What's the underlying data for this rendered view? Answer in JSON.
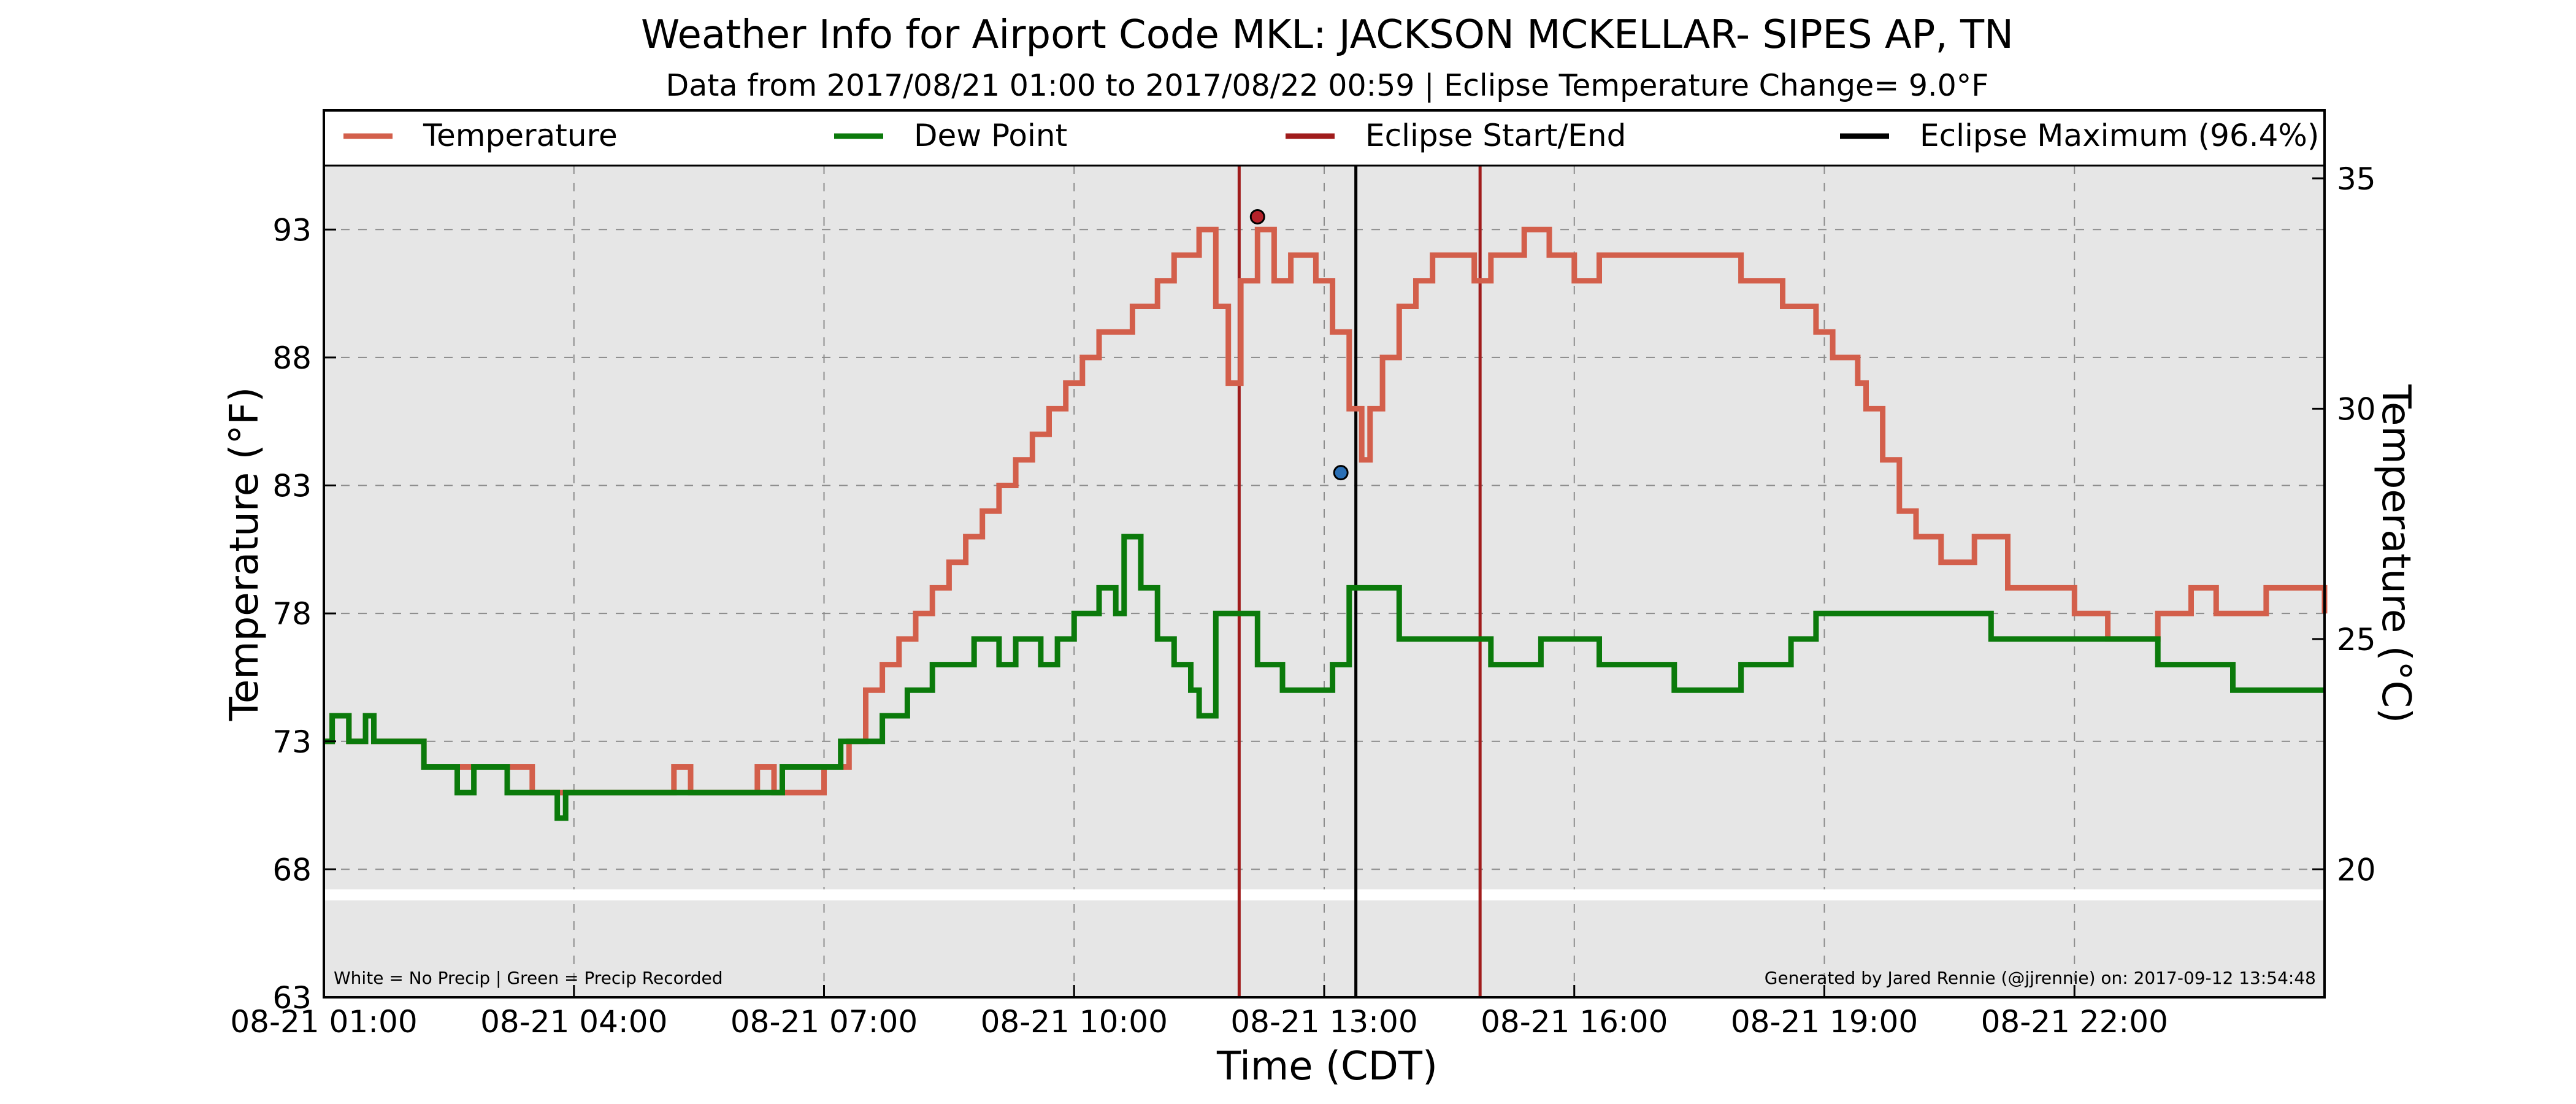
{
  "chart_data": {
    "type": "line",
    "title": "Weather Info for Airport Code MKL: JACKSON MCKELLAR- SIPES AP, TN",
    "subtitle": "Data from 2017/08/21 01:00 to 2017/08/22 00:59 | Eclipse Temperature Change= 9.0$^\\circ$F",
    "subtitle_display": "Data from 2017/08/21 01:00 to 2017/08/22 00:59 | Eclipse Temperature Change= 9.0°F",
    "xlabel": "Time (CDT)",
    "ylabel": "Temperature (°F)",
    "ylabel_right": "Temperature (°C)",
    "x_range": [
      "08-21 01:00",
      "08-22 00:59"
    ],
    "xlim_hours": [
      1,
      25
    ],
    "ylim": [
      63,
      95.5
    ],
    "y_ticks": [
      63,
      68,
      73,
      78,
      83,
      88,
      93
    ],
    "y_right_ticks": [
      20,
      25,
      30,
      35
    ],
    "x_ticks": [
      {
        "hour": 1,
        "label": "08-21 01:00"
      },
      {
        "hour": 4,
        "label": "08-21 04:00"
      },
      {
        "hour": 7,
        "label": "08-21 07:00"
      },
      {
        "hour": 10,
        "label": "08-21 10:00"
      },
      {
        "hour": 13,
        "label": "08-21 13:00"
      },
      {
        "hour": 16,
        "label": "08-21 16:00"
      },
      {
        "hour": 19,
        "label": "08-21 19:00"
      },
      {
        "hour": 22,
        "label": "08-21 22:00"
      }
    ],
    "grid": true,
    "legend_position": "top",
    "legend": [
      {
        "label": "Temperature",
        "color": "#d35f4b"
      },
      {
        "label": "Dew Point",
        "color": "#0b7a0b"
      },
      {
        "label": "Eclipse Start/End",
        "color": "#a01c1c"
      },
      {
        "label": "Eclipse Maximum (96.4%)",
        "color": "#000000"
      }
    ],
    "eclipse": {
      "start": "08-21 11:59",
      "maximum": "08-21 13:23",
      "end": "08-21 14:52",
      "start_hour": 11.98,
      "max_hour": 13.38,
      "end_hour": 14.87
    },
    "markers": [
      {
        "name": "eclipse-pre-max-temp",
        "x": 12.2,
        "y": 93.5,
        "color": "#b5222a"
      },
      {
        "name": "eclipse-min-temp",
        "x": 13.2,
        "y": 83.5,
        "color": "#2a6fb5"
      }
    ],
    "precip_band": {
      "y": 67.0,
      "color": "#ffffff",
      "note": "no precipitation recorded"
    },
    "footer_left": "White = No Precip | Green = Precip Recorded",
    "footer_right": "Generated by Jared Rennie (@jjrennie) on: 2017-09-12 13:54:48",
    "series": [
      {
        "name": "Temperature",
        "color": "#d35f4b",
        "points": [
          [
            1.0,
            73
          ],
          [
            1.1,
            74
          ],
          [
            1.3,
            73
          ],
          [
            1.5,
            74
          ],
          [
            1.6,
            73
          ],
          [
            2.0,
            73
          ],
          [
            2.2,
            72
          ],
          [
            3.0,
            72
          ],
          [
            3.5,
            71
          ],
          [
            5.0,
            71
          ],
          [
            5.2,
            72
          ],
          [
            5.4,
            71
          ],
          [
            6.0,
            71
          ],
          [
            6.2,
            72
          ],
          [
            6.4,
            71
          ],
          [
            7.0,
            72
          ],
          [
            7.3,
            73
          ],
          [
            7.5,
            75
          ],
          [
            7.7,
            76
          ],
          [
            7.9,
            77
          ],
          [
            8.1,
            78
          ],
          [
            8.3,
            79
          ],
          [
            8.5,
            80
          ],
          [
            8.7,
            81
          ],
          [
            8.9,
            82
          ],
          [
            9.1,
            83
          ],
          [
            9.3,
            84
          ],
          [
            9.5,
            85
          ],
          [
            9.7,
            86
          ],
          [
            9.9,
            87
          ],
          [
            10.1,
            88
          ],
          [
            10.3,
            89
          ],
          [
            10.5,
            89
          ],
          [
            10.7,
            90
          ],
          [
            11.0,
            91
          ],
          [
            11.2,
            92
          ],
          [
            11.5,
            93
          ],
          [
            11.7,
            90
          ],
          [
            11.85,
            87
          ],
          [
            12.0,
            91
          ],
          [
            12.2,
            93
          ],
          [
            12.4,
            91
          ],
          [
            12.6,
            92
          ],
          [
            12.9,
            91
          ],
          [
            13.1,
            89
          ],
          [
            13.3,
            86
          ],
          [
            13.45,
            84
          ],
          [
            13.55,
            86
          ],
          [
            13.7,
            88
          ],
          [
            13.9,
            90
          ],
          [
            14.1,
            91
          ],
          [
            14.3,
            92
          ],
          [
            14.8,
            91
          ],
          [
            15.0,
            92
          ],
          [
            15.4,
            93
          ],
          [
            15.7,
            92
          ],
          [
            16.0,
            91
          ],
          [
            16.3,
            92
          ],
          [
            17.0,
            92
          ],
          [
            18.0,
            91
          ],
          [
            18.5,
            90
          ],
          [
            18.9,
            89
          ],
          [
            19.1,
            88
          ],
          [
            19.4,
            87
          ],
          [
            19.5,
            86
          ],
          [
            19.7,
            84
          ],
          [
            19.9,
            82
          ],
          [
            20.1,
            81
          ],
          [
            20.4,
            80
          ],
          [
            20.8,
            81
          ],
          [
            21.2,
            79
          ],
          [
            21.6,
            79
          ],
          [
            22.0,
            78
          ],
          [
            22.4,
            77
          ],
          [
            22.8,
            77
          ],
          [
            23.0,
            78
          ],
          [
            23.4,
            79
          ],
          [
            23.7,
            78
          ],
          [
            24.0,
            78
          ],
          [
            24.3,
            79
          ],
          [
            25.0,
            78
          ]
        ]
      },
      {
        "name": "Dew Point",
        "color": "#0b7a0b",
        "points": [
          [
            1.0,
            73
          ],
          [
            1.1,
            74
          ],
          [
            1.3,
            73
          ],
          [
            1.5,
            74
          ],
          [
            1.6,
            73
          ],
          [
            2.0,
            73
          ],
          [
            2.2,
            72
          ],
          [
            2.4,
            72
          ],
          [
            2.6,
            71
          ],
          [
            2.8,
            72
          ],
          [
            3.2,
            71
          ],
          [
            3.6,
            71
          ],
          [
            3.8,
            70
          ],
          [
            3.9,
            71
          ],
          [
            4.2,
            71
          ],
          [
            5.0,
            71
          ],
          [
            6.0,
            71
          ],
          [
            6.5,
            72
          ],
          [
            7.0,
            72
          ],
          [
            7.2,
            73
          ],
          [
            7.5,
            73
          ],
          [
            7.7,
            74
          ],
          [
            8.0,
            75
          ],
          [
            8.3,
            76
          ],
          [
            8.6,
            76
          ],
          [
            8.8,
            77
          ],
          [
            9.1,
            76
          ],
          [
            9.3,
            77
          ],
          [
            9.6,
            76
          ],
          [
            9.8,
            77
          ],
          [
            10.0,
            78
          ],
          [
            10.3,
            79
          ],
          [
            10.5,
            78
          ],
          [
            10.6,
            81
          ],
          [
            10.8,
            79
          ],
          [
            11.0,
            77
          ],
          [
            11.2,
            76
          ],
          [
            11.4,
            75
          ],
          [
            11.5,
            74
          ],
          [
            11.7,
            78
          ],
          [
            12.0,
            78
          ],
          [
            12.2,
            76
          ],
          [
            12.5,
            75
          ],
          [
            12.8,
            75
          ],
          [
            13.1,
            76
          ],
          [
            13.3,
            79
          ],
          [
            13.6,
            79
          ],
          [
            13.9,
            77
          ],
          [
            14.2,
            77
          ],
          [
            14.6,
            77
          ],
          [
            15.0,
            76
          ],
          [
            15.3,
            76
          ],
          [
            15.6,
            77
          ],
          [
            16.0,
            77
          ],
          [
            16.3,
            76
          ],
          [
            16.8,
            76
          ],
          [
            17.2,
            75
          ],
          [
            17.6,
            75
          ],
          [
            18.0,
            76
          ],
          [
            18.3,
            76
          ],
          [
            18.6,
            77
          ],
          [
            18.9,
            78
          ],
          [
            19.4,
            78
          ],
          [
            20.0,
            78
          ],
          [
            20.5,
            78
          ],
          [
            21.0,
            77
          ],
          [
            21.4,
            77
          ],
          [
            21.8,
            77
          ],
          [
            22.2,
            77
          ],
          [
            22.6,
            77
          ],
          [
            23.0,
            76
          ],
          [
            23.3,
            76
          ],
          [
            23.6,
            76
          ],
          [
            23.9,
            75
          ],
          [
            24.2,
            75
          ],
          [
            24.5,
            75
          ],
          [
            24.8,
            75
          ],
          [
            25.0,
            75
          ]
        ]
      }
    ]
  }
}
